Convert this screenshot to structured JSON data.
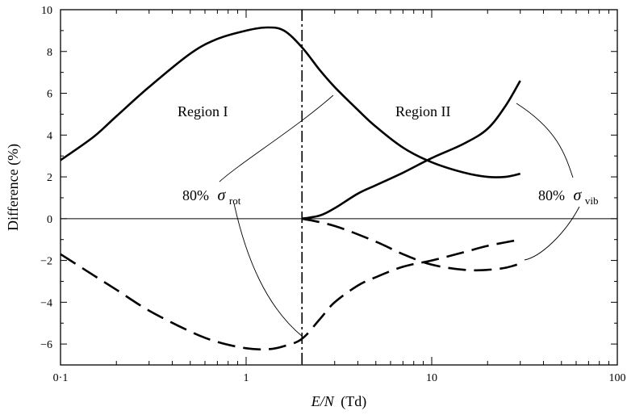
{
  "chart_data": {
    "type": "line",
    "title": "",
    "xlabel": "E/N (Td)",
    "ylabel": "Difference (%)",
    "xscale": "log",
    "xlim": [
      0.1,
      100
    ],
    "ylim": [
      -7,
      10
    ],
    "xticks": [
      {
        "value": 0.1,
        "label": "0·1"
      },
      {
        "value": 1,
        "label": "1"
      },
      {
        "value": 10,
        "label": "10"
      },
      {
        "value": 100,
        "label": "100"
      }
    ],
    "yticks": [
      -6,
      -4,
      -2,
      0,
      2,
      4,
      6,
      8,
      10
    ],
    "grid": false,
    "zero_line": true,
    "divider_x": 2,
    "series": [
      {
        "style": "solid",
        "x": [
          0.1,
          0.15,
          0.2,
          0.3,
          0.5,
          0.7,
          1.0,
          1.3,
          1.6,
          2.0,
          2.5,
          3.0,
          4.0,
          5.0,
          7.0,
          10.0,
          15.0,
          20.0,
          25.0,
          30.0
        ],
        "y": [
          2.8,
          3.9,
          4.9,
          6.3,
          7.9,
          8.6,
          9.0,
          9.15,
          9.0,
          8.2,
          7.1,
          6.3,
          5.2,
          4.4,
          3.4,
          2.7,
          2.2,
          2.0,
          2.0,
          2.15
        ]
      },
      {
        "style": "solid",
        "x": [
          2.0,
          2.5,
          3.0,
          4.0,
          5.0,
          7.0,
          10.0,
          15.0,
          20.0,
          25.0,
          30.0
        ],
        "y": [
          0.0,
          0.15,
          0.5,
          1.2,
          1.6,
          2.2,
          2.9,
          3.6,
          4.3,
          5.4,
          6.6
        ]
      },
      {
        "style": "dashed",
        "x": [
          0.1,
          0.15,
          0.2,
          0.3,
          0.5,
          0.7,
          1.0,
          1.3,
          1.6,
          2.0,
          2.5,
          3.0,
          4.0,
          5.0,
          7.0,
          10.0,
          15.0,
          20.0,
          30.0
        ],
        "y": [
          -1.7,
          -2.7,
          -3.4,
          -4.4,
          -5.4,
          -5.9,
          -6.2,
          -6.25,
          -6.1,
          -5.75,
          -4.8,
          -4.0,
          -3.2,
          -2.8,
          -2.3,
          -2.0,
          -1.6,
          -1.3,
          -1.0
        ]
      },
      {
        "style": "dashed",
        "x": [
          2.0,
          3.0,
          5.0,
          7.0,
          10.0,
          15.0,
          20.0,
          25.0,
          30.0
        ],
        "y": [
          0.0,
          -0.35,
          -1.1,
          -1.7,
          -2.2,
          -2.45,
          -2.45,
          -2.35,
          -2.15
        ]
      }
    ],
    "annotations": [
      {
        "text": "Region I",
        "x": 0.45,
        "y": 5.1
      },
      {
        "text": "Region II",
        "x": 6.5,
        "y": 5.1
      },
      {
        "text": "80%",
        "symbol": "σ",
        "subscript": "rot",
        "x": 0.7,
        "y": 1.0
      },
      {
        "text": "80%",
        "symbol": "σ",
        "subscript": "vib",
        "x": 42,
        "y": 1.0
      }
    ]
  },
  "labels": {
    "region1": "Region I",
    "region2": "Region II",
    "rot_pct": "80%",
    "rot_sym": "σ",
    "rot_sub": "rot",
    "vib_pct": "80%",
    "vib_sym": "σ",
    "vib_sub": "vib",
    "xlabel_italic": "E/N",
    "xlabel_unit": "(Td)",
    "ylabel": "Difference (%)"
  }
}
